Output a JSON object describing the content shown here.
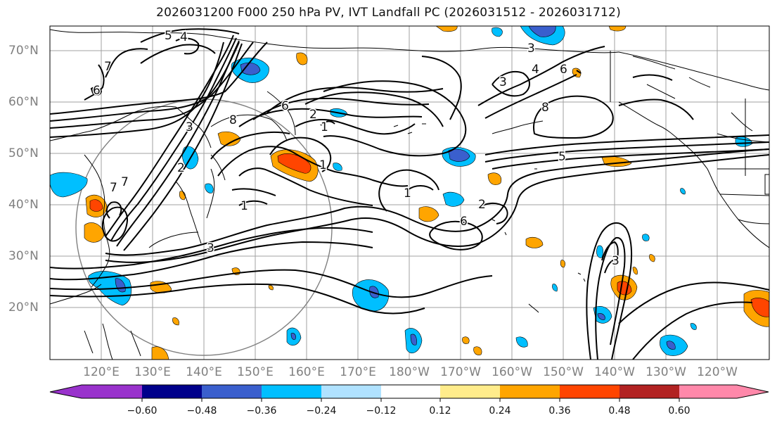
{
  "title": "2026031200 F000 250 hPa PV, IVT Landfall PC (2026031512 - 2026031712)",
  "lat_labels": [
    "70°N",
    "60°N",
    "50°N",
    "40°N",
    "30°N",
    "20°N"
  ],
  "lon_labels": [
    "120°E",
    "130°E",
    "140°E",
    "150°E",
    "160°E",
    "170°E",
    "180°W",
    "170°W",
    "160°W",
    "150°W",
    "140°W",
    "130°W",
    "120°W"
  ],
  "colorbar": {
    "ticks": [
      "−0.60",
      "−0.48",
      "−0.36",
      "−0.24",
      "−0.12",
      "0.12",
      "0.24",
      "0.36",
      "0.48",
      "0.60"
    ],
    "colors": [
      "#9932cc",
      "#00008b",
      "#3a5fcd",
      "#00bfff",
      "#b0e2ff",
      "#ffffff",
      "#ffec8b",
      "#ffa500",
      "#ff4500",
      "#b22222",
      "#ff88aa"
    ]
  },
  "contour_labels": [
    "1",
    "2",
    "3",
    "4",
    "5",
    "6",
    "7",
    "8"
  ],
  "contour_label_annotations": [
    "6",
    "7",
    "4",
    "3",
    "2",
    "8",
    "6",
    "1",
    "2",
    "1",
    "1",
    "2",
    "6",
    "5",
    "3",
    "6",
    "4",
    "3",
    "8",
    "7",
    "7",
    "1",
    "3",
    "5",
    "3"
  ]
}
